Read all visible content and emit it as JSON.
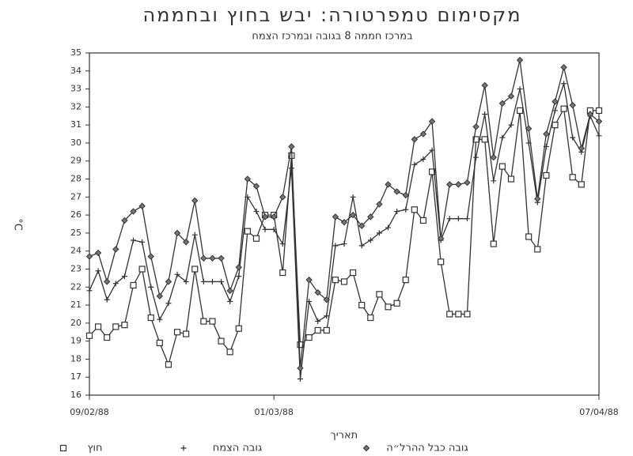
{
  "chart_data": {
    "type": "line",
    "title": "מקסימום טמפרטורה: יבש בחוץ ובחממה",
    "subtitle": "במרכז חממה 8 בגובה ובמרכז הצמח",
    "x_label": "תאריך",
    "y_label": "°C",
    "categories": [
      "09/02/88",
      null,
      null,
      null,
      null,
      null,
      null,
      null,
      null,
      null,
      null,
      null,
      null,
      null,
      null,
      null,
      null,
      null,
      null,
      null,
      null,
      "01/03/88",
      null,
      null,
      null,
      null,
      null,
      null,
      null,
      null,
      null,
      null,
      null,
      null,
      null,
      null,
      null,
      null,
      null,
      null,
      null,
      null,
      null,
      null,
      null,
      null,
      null,
      null,
      null,
      null,
      null,
      null,
      null,
      null,
      null,
      null,
      null,
      null,
      "07/04/88"
    ],
    "ylim": [
      16,
      35
    ],
    "yticks": [
      16,
      17,
      18,
      19,
      20,
      21,
      22,
      23,
      24,
      25,
      26,
      27,
      28,
      29,
      30,
      31,
      32,
      33,
      34,
      35
    ],
    "series": [
      {
        "name": "חוץ",
        "marker": "square",
        "color": "#333",
        "values": [
          19.3,
          19.8,
          19.2,
          19.8,
          19.9,
          22.1,
          23.0,
          20.3,
          18.9,
          17.7,
          19.5,
          19.4,
          23.0,
          20.1,
          20.1,
          19.0,
          18.4,
          19.7,
          25.1,
          24.7,
          26.0,
          26.0,
          22.8,
          29.3,
          18.8,
          19.2,
          19.6,
          19.6,
          22.4,
          22.3,
          22.8,
          21.0,
          20.3,
          21.6,
          20.9,
          21.1,
          22.4,
          26.3,
          25.7,
          28.4,
          23.4,
          20.5,
          20.5,
          20.5,
          30.2,
          30.2,
          24.4,
          28.7,
          28.0,
          31.8,
          24.8,
          24.1,
          28.2,
          31.0,
          31.9,
          28.1,
          27.7,
          31.8,
          31.8
        ]
      },
      {
        "name": "גובה הצמח",
        "marker": "plus",
        "color": "#333",
        "values": [
          21.8,
          22.9,
          21.3,
          22.2,
          22.6,
          24.6,
          24.5,
          22.0,
          20.2,
          21.1,
          22.7,
          22.3,
          24.9,
          22.3,
          22.3,
          22.3,
          21.2,
          22.6,
          27.0,
          26.2,
          25.2,
          25.2,
          24.4,
          28.6,
          16.9,
          21.2,
          20.1,
          20.4,
          24.3,
          24.4,
          27.0,
          24.3,
          24.6,
          25.0,
          25.3,
          26.2,
          26.3,
          28.8,
          29.1,
          29.6,
          24.6,
          25.8,
          25.8,
          25.8,
          29.2,
          31.6,
          27.9,
          30.3,
          31.0,
          33.0,
          30.0,
          26.7,
          29.8,
          31.8,
          33.3,
          30.3,
          29.5,
          31.5,
          30.4
        ]
      },
      {
        "name": "גובה כבל ההרל״ה",
        "marker": "diamond",
        "color": "#333",
        "values": [
          23.7,
          23.9,
          22.3,
          24.1,
          25.7,
          26.2,
          26.5,
          23.7,
          21.5,
          22.3,
          25.0,
          24.5,
          26.8,
          23.6,
          23.6,
          23.6,
          21.8,
          23.1,
          28.0,
          27.6,
          25.9,
          25.9,
          27.0,
          29.8,
          17.5,
          22.4,
          21.7,
          21.3,
          25.9,
          25.6,
          26.0,
          25.4,
          25.9,
          26.6,
          27.7,
          27.3,
          27.1,
          30.2,
          30.5,
          31.2,
          24.7,
          27.7,
          27.7,
          27.8,
          30.9,
          33.2,
          29.2,
          32.2,
          32.6,
          34.6,
          30.8,
          26.9,
          30.5,
          32.3,
          34.2,
          32.1,
          29.7,
          31.6,
          31.2
        ]
      }
    ]
  }
}
